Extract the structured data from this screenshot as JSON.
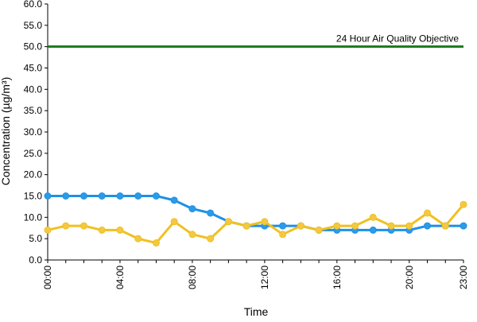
{
  "chart_data": {
    "type": "line",
    "xlabel": "Time",
    "ylabel": "Concentration (µg/m³)",
    "ylim": [
      0,
      60
    ],
    "y_ticks": [
      "0.0",
      "5.0",
      "10.0",
      "15.0",
      "20.0",
      "25.0",
      "30.0",
      "35.0",
      "40.0",
      "45.0",
      "50.0",
      "55.0",
      "60.0"
    ],
    "x_range": [
      0,
      23
    ],
    "x_tick_labels": [
      "00:00",
      "04:00",
      "08:00",
      "12:00",
      "16:00",
      "20:00",
      "23:00"
    ],
    "x_tick_hours": [
      0,
      4,
      8,
      12,
      16,
      20,
      23
    ],
    "x": [
      0,
      1,
      2,
      3,
      4,
      5,
      6,
      7,
      8,
      9,
      10,
      11,
      12,
      13,
      14,
      15,
      16,
      17,
      18,
      19,
      20,
      21,
      22,
      23
    ],
    "series": [
      {
        "color": "#1e90e6",
        "marker_color": "#2b9be8",
        "values": [
          15,
          15,
          15,
          15,
          15,
          15,
          15,
          14,
          12,
          11,
          9,
          8,
          8,
          8,
          8,
          7,
          7,
          7,
          7,
          7,
          7,
          8,
          8,
          8
        ]
      },
      {
        "color": "#f0c020",
        "marker_color": "#f5c842",
        "values": [
          7,
          8,
          8,
          7,
          7,
          5,
          4,
          9,
          6,
          5,
          9,
          8,
          9,
          6,
          8,
          7,
          8,
          8,
          10,
          8,
          8,
          11,
          8,
          13
        ]
      }
    ],
    "reference_line": {
      "value": 50,
      "label": "24 Hour Air Quality Objective",
      "color": "#1a7a1a"
    },
    "grid": false
  }
}
